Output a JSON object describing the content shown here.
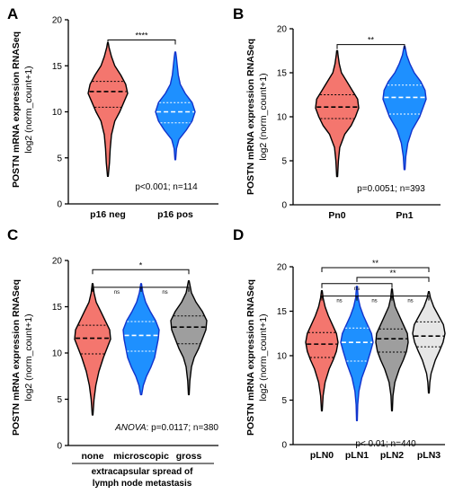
{
  "colors": {
    "red": "#F4766E",
    "blue": "#1E90FF",
    "dark_gray": "#9E9E9E",
    "light_gray": "#E6E6E6",
    "outline_red": "#000000",
    "outline_blue": "#1133CC"
  },
  "chart_data": [
    {
      "panel": "A",
      "type": "violin",
      "ylabel": "POSTN mRNA expression RNASeq",
      "ylabel2": "log2 (norm_count+1)",
      "ylim": [
        0,
        20
      ],
      "yticks": [
        "0",
        "5",
        "10",
        "15",
        "20"
      ],
      "categories": [
        "p16 neg",
        "p16 pos"
      ],
      "series": [
        {
          "category": "p16 neg",
          "color": "red",
          "outline": "black",
          "median": 12.2,
          "q1": 10.5,
          "q3": 13.3,
          "min": 3.0,
          "max": 17.5,
          "density": [
            [
              3.0,
              0.02
            ],
            [
              4.5,
              0.08
            ],
            [
              6.0,
              0.12
            ],
            [
              7.5,
              0.18
            ],
            [
              9.0,
              0.35
            ],
            [
              10.0,
              0.6
            ],
            [
              11.0,
              0.8
            ],
            [
              12.0,
              1.0
            ],
            [
              13.0,
              0.9
            ],
            [
              14.0,
              0.65
            ],
            [
              15.0,
              0.35
            ],
            [
              16.0,
              0.18
            ],
            [
              17.0,
              0.06
            ],
            [
              17.5,
              0.02
            ]
          ]
        },
        {
          "category": "p16 pos",
          "color": "blue",
          "outline": "blue",
          "median": 10.0,
          "q1": 8.8,
          "q3": 11.0,
          "min": 4.8,
          "max": 16.5,
          "density": [
            [
              4.8,
              0.02
            ],
            [
              6.0,
              0.06
            ],
            [
              7.0,
              0.18
            ],
            [
              8.0,
              0.55
            ],
            [
              9.0,
              0.85
            ],
            [
              10.0,
              1.0
            ],
            [
              11.0,
              0.85
            ],
            [
              12.0,
              0.5
            ],
            [
              13.0,
              0.25
            ],
            [
              14.0,
              0.15
            ],
            [
              15.0,
              0.1
            ],
            [
              16.0,
              0.05
            ],
            [
              16.5,
              0.02
            ]
          ]
        }
      ],
      "brackets": [
        {
          "from": 0,
          "to": 1,
          "label": "****",
          "y": 17.8
        }
      ],
      "annotation": "p<0.001; n=114"
    },
    {
      "panel": "B",
      "type": "violin",
      "ylabel": "POSTN mRNA expression RNASeq",
      "ylabel2": "log2 (norm_count+1)",
      "ylim": [
        0,
        20
      ],
      "yticks": [
        "0",
        "5",
        "10",
        "15",
        "20"
      ],
      "categories": [
        "Pn0",
        "Pn1"
      ],
      "series": [
        {
          "category": "Pn0",
          "color": "red",
          "outline": "black",
          "median": 11.1,
          "q1": 9.8,
          "q3": 12.5,
          "min": 3.2,
          "max": 17.5,
          "density": [
            [
              3.2,
              0.02
            ],
            [
              5.0,
              0.06
            ],
            [
              6.5,
              0.12
            ],
            [
              8.0,
              0.35
            ],
            [
              9.0,
              0.65
            ],
            [
              10.0,
              0.85
            ],
            [
              11.0,
              1.0
            ],
            [
              12.0,
              0.95
            ],
            [
              13.0,
              0.7
            ],
            [
              14.0,
              0.45
            ],
            [
              15.0,
              0.2
            ],
            [
              16.0,
              0.1
            ],
            [
              17.0,
              0.04
            ],
            [
              17.5,
              0.02
            ]
          ]
        },
        {
          "category": "Pn1",
          "color": "blue",
          "outline": "blue",
          "median": 12.2,
          "q1": 10.3,
          "q3": 13.6,
          "min": 4.0,
          "max": 18.0,
          "density": [
            [
              4.0,
              0.02
            ],
            [
              5.5,
              0.06
            ],
            [
              7.0,
              0.15
            ],
            [
              8.5,
              0.35
            ],
            [
              10.0,
              0.7
            ],
            [
              11.0,
              0.85
            ],
            [
              12.0,
              1.0
            ],
            [
              13.0,
              0.95
            ],
            [
              14.0,
              0.75
            ],
            [
              15.0,
              0.45
            ],
            [
              16.0,
              0.25
            ],
            [
              17.0,
              0.1
            ],
            [
              18.0,
              0.02
            ]
          ]
        }
      ],
      "brackets": [
        {
          "from": 0,
          "to": 1,
          "label": "**",
          "y": 18.2
        }
      ],
      "annotation": "p=0.0051; n=393"
    },
    {
      "panel": "C",
      "type": "violin",
      "ylabel": "POSTN mRNA expression RNASeq",
      "ylabel2": "log2 (norm_count+1)",
      "ylim": [
        0,
        20
      ],
      "yticks": [
        "0",
        "5",
        "10",
        "15",
        "20"
      ],
      "categories": [
        "none",
        "microscopic",
        "gross"
      ],
      "series": [
        {
          "category": "none",
          "color": "red",
          "outline": "black",
          "median": 11.6,
          "q1": 9.9,
          "q3": 13.0,
          "min": 3.3,
          "max": 17.5,
          "density": [
            [
              3.3,
              0.02
            ],
            [
              5.0,
              0.08
            ],
            [
              6.5,
              0.18
            ],
            [
              8.0,
              0.35
            ],
            [
              9.5,
              0.6
            ],
            [
              10.5,
              0.8
            ],
            [
              11.5,
              1.0
            ],
            [
              12.5,
              0.95
            ],
            [
              13.5,
              0.7
            ],
            [
              14.5,
              0.45
            ],
            [
              15.5,
              0.2
            ],
            [
              16.5,
              0.08
            ],
            [
              17.5,
              0.02
            ]
          ]
        },
        {
          "category": "microscopic",
          "color": "blue",
          "outline": "blue",
          "median": 11.9,
          "q1": 10.2,
          "q3": 13.4,
          "min": 5.5,
          "max": 17.5,
          "density": [
            [
              5.5,
              0.03
            ],
            [
              6.5,
              0.12
            ],
            [
              7.5,
              0.3
            ],
            [
              8.5,
              0.55
            ],
            [
              9.5,
              0.75
            ],
            [
              10.5,
              0.85
            ],
            [
              11.5,
              0.95
            ],
            [
              12.5,
              1.0
            ],
            [
              13.5,
              0.8
            ],
            [
              14.5,
              0.5
            ],
            [
              15.5,
              0.25
            ],
            [
              16.5,
              0.1
            ],
            [
              17.5,
              0.02
            ]
          ]
        },
        {
          "category": "gross",
          "color": "dark_gray",
          "outline": "black",
          "median": 12.8,
          "q1": 11.0,
          "q3": 14.0,
          "min": 5.5,
          "max": 17.8,
          "density": [
            [
              5.5,
              0.02
            ],
            [
              7.0,
              0.06
            ],
            [
              8.5,
              0.15
            ],
            [
              9.5,
              0.3
            ],
            [
              10.5,
              0.55
            ],
            [
              11.5,
              0.75
            ],
            [
              12.5,
              0.95
            ],
            [
              13.5,
              1.0
            ],
            [
              14.5,
              0.75
            ],
            [
              15.5,
              0.4
            ],
            [
              16.5,
              0.15
            ],
            [
              17.8,
              0.02
            ]
          ]
        }
      ],
      "brackets": [
        {
          "from": 0,
          "to": 1,
          "label": "ns",
          "y": 17.1
        },
        {
          "from": 1,
          "to": 2,
          "label": "ns",
          "y": 17.1
        },
        {
          "from": 0,
          "to": 2,
          "label": "*",
          "y": 19.0
        }
      ],
      "annotation_italic": "ANOVA",
      "annotation": ": p=0.0117; n=380",
      "xlabel": "extracapsular spread of lymph node metastasis"
    },
    {
      "panel": "D",
      "type": "violin",
      "ylabel": "POSTN mRNA expression RNASeq",
      "ylabel2": "log2 (norm_count+1)",
      "ylim": [
        0,
        20
      ],
      "yticks": [
        "0",
        "5",
        "10",
        "15",
        "20"
      ],
      "categories": [
        "pLN0",
        "pLN1",
        "pLN2",
        "pLN3"
      ],
      "series": [
        {
          "category": "pLN0",
          "color": "red",
          "outline": "black",
          "median": 11.3,
          "q1": 9.8,
          "q3": 12.6,
          "min": 3.8,
          "max": 17.3,
          "density": [
            [
              3.8,
              0.02
            ],
            [
              5.5,
              0.08
            ],
            [
              7.0,
              0.2
            ],
            [
              8.5,
              0.45
            ],
            [
              9.5,
              0.7
            ],
            [
              10.5,
              0.9
            ],
            [
              11.5,
              1.0
            ],
            [
              12.5,
              0.9
            ],
            [
              13.5,
              0.65
            ],
            [
              14.5,
              0.4
            ],
            [
              15.5,
              0.2
            ],
            [
              16.5,
              0.08
            ],
            [
              17.3,
              0.02
            ]
          ]
        },
        {
          "category": "pLN1",
          "color": "blue",
          "outline": "blue",
          "median": 11.5,
          "q1": 9.4,
          "q3": 13.1,
          "min": 2.7,
          "max": 17.8,
          "density": [
            [
              2.7,
              0.02
            ],
            [
              4.5,
              0.05
            ],
            [
              6.0,
              0.12
            ],
            [
              7.5,
              0.3
            ],
            [
              9.0,
              0.6
            ],
            [
              10.5,
              0.85
            ],
            [
              11.5,
              1.0
            ],
            [
              12.5,
              0.9
            ],
            [
              13.5,
              0.65
            ],
            [
              14.5,
              0.4
            ],
            [
              15.5,
              0.2
            ],
            [
              16.5,
              0.08
            ],
            [
              17.8,
              0.02
            ]
          ]
        },
        {
          "category": "pLN2",
          "color": "dark_gray",
          "outline": "black",
          "median": 11.9,
          "q1": 10.4,
          "q3": 13.0,
          "min": 3.8,
          "max": 17.5,
          "density": [
            [
              3.8,
              0.02
            ],
            [
              5.5,
              0.06
            ],
            [
              7.0,
              0.18
            ],
            [
              8.5,
              0.45
            ],
            [
              9.5,
              0.7
            ],
            [
              10.5,
              0.9
            ],
            [
              11.5,
              1.0
            ],
            [
              12.5,
              0.95
            ],
            [
              13.5,
              0.7
            ],
            [
              14.5,
              0.45
            ],
            [
              15.5,
              0.2
            ],
            [
              16.5,
              0.08
            ],
            [
              17.5,
              0.02
            ]
          ]
        },
        {
          "category": "pLN3",
          "color": "light_gray",
          "outline": "black",
          "median": 12.2,
          "q1": 11.0,
          "q3": 13.8,
          "min": 5.8,
          "max": 17.2,
          "density": [
            [
              5.8,
              0.02
            ],
            [
              7.0,
              0.06
            ],
            [
              8.0,
              0.14
            ],
            [
              9.5,
              0.4
            ],
            [
              10.5,
              0.65
            ],
            [
              11.5,
              0.88
            ],
            [
              12.5,
              1.0
            ],
            [
              13.5,
              0.9
            ],
            [
              14.5,
              0.6
            ],
            [
              15.5,
              0.3
            ],
            [
              16.5,
              0.1
            ],
            [
              17.2,
              0.02
            ]
          ]
        }
      ],
      "brackets": [
        {
          "from": 0,
          "to": 1,
          "label": "ns",
          "y": 16.7
        },
        {
          "from": 1,
          "to": 2,
          "label": "ns",
          "y": 16.7
        },
        {
          "from": 2,
          "to": 3,
          "label": "ns",
          "y": 16.7
        },
        {
          "from": 0,
          "to": 2,
          "label": "ns",
          "y": 18.1
        },
        {
          "from": 1,
          "to": 3,
          "label": "**",
          "y": 18.8
        },
        {
          "from": 0,
          "to": 3,
          "label": "**",
          "y": 19.9
        }
      ],
      "annotation": "p< 0.01; n=440"
    }
  ]
}
